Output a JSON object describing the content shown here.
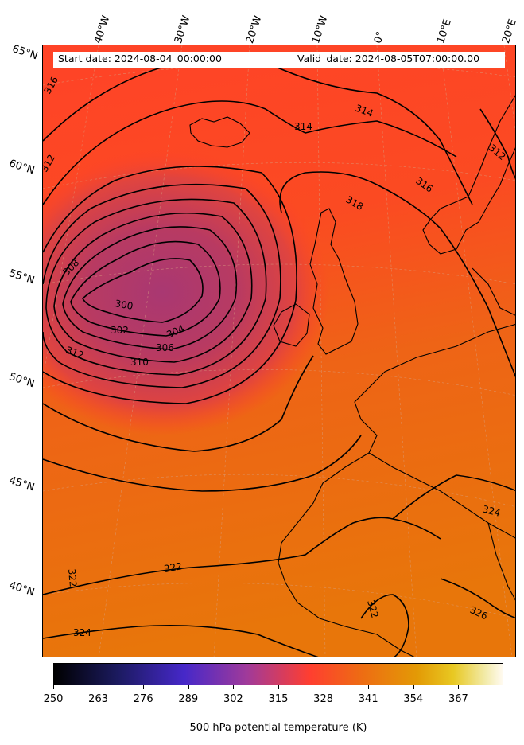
{
  "header": {
    "start_date": "Start date: 2024-08-04_00:00:00",
    "valid_date": "Valid_date: 2024-08-05T07:00:00.00"
  },
  "lat_labels": [
    "65°N",
    "60°N",
    "55°N",
    "50°N",
    "45°N",
    "40°N"
  ],
  "lon_labels": [
    "40°W",
    "30°W",
    "20°W",
    "10°W",
    "0°",
    "10°E",
    "20°E"
  ],
  "contour_labels": [
    "316",
    "314",
    "314",
    "312",
    "316",
    "318",
    "308",
    "300",
    "302",
    "304",
    "306",
    "310",
    "312",
    "324",
    "322",
    "322",
    "324",
    "326",
    "322",
    "312"
  ],
  "colorbar": {
    "ticks": [
      "250",
      "263",
      "276",
      "289",
      "302",
      "315",
      "328",
      "341",
      "354",
      "367"
    ],
    "title": "500 hPa potential temperature (K)",
    "colors": [
      "#000000",
      "#1b1a5e",
      "#4628c9",
      "#a03a9a",
      "#ff3e30",
      "#ee6a14",
      "#e39a05",
      "#e8c822",
      "#f2eaa6",
      "#fffaf0"
    ]
  },
  "colors": {
    "north_fill": "#ff4327",
    "mid_fill": "#f5561a",
    "south_fill": "#e8760a",
    "low_core": "#b0386a",
    "contour": "#000000"
  }
}
